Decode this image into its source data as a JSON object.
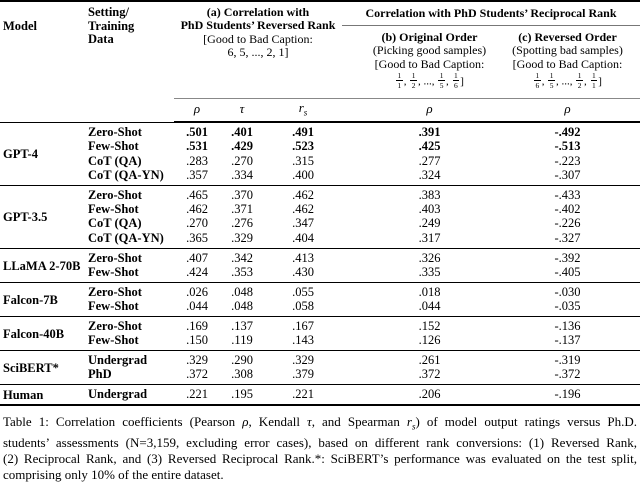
{
  "table": {
    "header": {
      "model_label": "Model",
      "setting_lines": [
        "Setting/",
        "Training",
        "Data"
      ],
      "col_a": {
        "title_line1": "(a) Correlation with",
        "title_line2": "PhD Students’ Reversed Rank",
        "note_line1": "[Good to Bad Caption:",
        "note_line2": "6, 5, ..., 2, 1]"
      },
      "reciprocal_title": "Correlation with PhD Students’ Reciprocal Rank",
      "col_b": {
        "title": "(b) Original Order",
        "subtitle": "(Picking good samples)",
        "note_line": "[Good to Bad Caption:",
        "tokens": [
          {
            "type": "frac",
            "n": "1",
            "d": "1"
          },
          {
            "type": "text",
            "t": ", "
          },
          {
            "type": "frac",
            "n": "1",
            "d": "2"
          },
          {
            "type": "text",
            "t": ", ..., "
          },
          {
            "type": "frac",
            "n": "1",
            "d": "5"
          },
          {
            "type": "text",
            "t": ", "
          },
          {
            "type": "frac",
            "n": "1",
            "d": "6"
          },
          {
            "type": "text",
            "t": "]"
          }
        ]
      },
      "col_c": {
        "title": "(c) Reversed Order",
        "subtitle": "(Spotting bad samples)",
        "note_line": "[Good to Bad Caption:",
        "tokens": [
          {
            "type": "frac",
            "n": "1",
            "d": "6"
          },
          {
            "type": "text",
            "t": ", "
          },
          {
            "type": "frac",
            "n": "1",
            "d": "5"
          },
          {
            "type": "text",
            "t": ", ..., "
          },
          {
            "type": "frac",
            "n": "1",
            "d": "2"
          },
          {
            "type": "text",
            "t": ", "
          },
          {
            "type": "frac",
            "n": "1",
            "d": "1"
          },
          {
            "type": "text",
            "t": "]"
          }
        ]
      },
      "stats": {
        "rho": "ρ",
        "tau": "τ",
        "rs_base": "r",
        "rs_sub": "s"
      }
    },
    "groups": [
      {
        "model": "GPT-4",
        "rows": [
          {
            "setting": "Zero-Shot",
            "values": [
              ".501",
              ".401",
              ".491",
              ".391",
              "-.492"
            ],
            "bold": true
          },
          {
            "setting": "Few-Shot",
            "values": [
              ".531",
              ".429",
              ".523",
              ".425",
              "-.513"
            ],
            "bold": true
          },
          {
            "setting": "CoT (QA)",
            "values": [
              ".283",
              ".270",
              ".315",
              ".277",
              "-.223"
            ],
            "bold": false
          },
          {
            "setting": "CoT (QA-YN)",
            "values": [
              ".357",
              ".334",
              ".400",
              ".324",
              "-.307"
            ],
            "bold": false
          }
        ]
      },
      {
        "model": "GPT-3.5",
        "rows": [
          {
            "setting": "Zero-Shot",
            "values": [
              ".465",
              ".370",
              ".462",
              ".383",
              "-.433"
            ],
            "bold": false
          },
          {
            "setting": "Few-Shot",
            "values": [
              ".462",
              ".371",
              ".462",
              ".403",
              "-.402"
            ],
            "bold": false
          },
          {
            "setting": "CoT (QA)",
            "values": [
              ".270",
              ".276",
              ".347",
              ".249",
              "-.226"
            ],
            "bold": false
          },
          {
            "setting": "CoT (QA-YN)",
            "values": [
              ".365",
              ".329",
              ".404",
              ".317",
              "-.327"
            ],
            "bold": false
          }
        ]
      },
      {
        "model": "LLaMA 2-70B",
        "rows": [
          {
            "setting": "Zero-Shot",
            "values": [
              ".407",
              ".342",
              ".413",
              ".326",
              "-.392"
            ],
            "bold": false
          },
          {
            "setting": "Few-Shot",
            "values": [
              ".424",
              ".353",
              ".430",
              ".335",
              "-.405"
            ],
            "bold": false
          }
        ]
      },
      {
        "model": "Falcon-7B",
        "rows": [
          {
            "setting": "Zero-Shot",
            "values": [
              ".026",
              ".048",
              ".055",
              ".018",
              "-.030"
            ],
            "bold": false
          },
          {
            "setting": "Few-Shot",
            "values": [
              ".044",
              ".048",
              ".058",
              ".044",
              "-.035"
            ],
            "bold": false
          }
        ]
      },
      {
        "model": "Falcon-40B",
        "rows": [
          {
            "setting": "Zero-Shot",
            "values": [
              ".169",
              ".137",
              ".167",
              ".152",
              "-.136"
            ],
            "bold": false
          },
          {
            "setting": "Few-Shot",
            "values": [
              ".150",
              ".119",
              ".143",
              ".126",
              "-.137"
            ],
            "bold": false
          }
        ]
      },
      {
        "model": "SciBERT*",
        "rows": [
          {
            "setting": "Undergrad",
            "values": [
              ".329",
              ".290",
              ".329",
              ".261",
              "-.319"
            ],
            "bold": false
          },
          {
            "setting": "PhD",
            "values": [
              ".372",
              ".308",
              ".379",
              ".372",
              "-.372"
            ],
            "bold": false
          }
        ]
      },
      {
        "model": "Human",
        "rows": [
          {
            "setting": "Undergrad",
            "values": [
              ".221",
              ".195",
              ".221",
              ".206",
              "-.196"
            ],
            "bold": false
          }
        ]
      }
    ]
  },
  "caption": {
    "lines": [
      [
        {
          "t": "Table 1: Correlation coefficients (Pearson "
        },
        {
          "t": "ρ",
          "i": true
        },
        {
          "t": ", Kendall "
        },
        {
          "t": "τ",
          "i": true
        },
        {
          "t": ", and Spearman "
        },
        {
          "t": "r",
          "i": true
        },
        {
          "t": "s",
          "sub": true
        },
        {
          "t": ") of model output ratings versus Ph.D."
        }
      ],
      [
        {
          "t": "students’ assessments (N=3,159, excluding error cases), based on different rank conversions: (1) Reversed Rank,"
        }
      ],
      [
        {
          "t": "(2) Reciprocal Rank, and (3) Reversed Reciprocal Rank.*: SciBERT’s performance was evaluated on the test split,"
        }
      ],
      [
        {
          "t": "comprising only 10% of the entire dataset."
        }
      ]
    ]
  }
}
